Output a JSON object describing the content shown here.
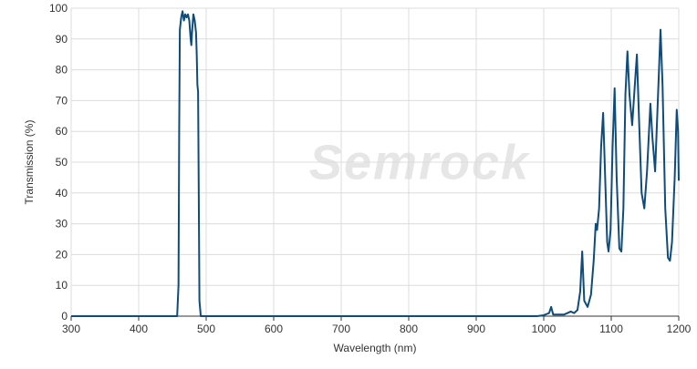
{
  "chart_data": {
    "type": "line",
    "watermark": "Semrock",
    "x_label": "Wavelength (nm)",
    "y_label": "Transmission (%)",
    "color": "#0f4c7a",
    "grid": true,
    "xlim": [
      300,
      1200
    ],
    "xticks": [
      300,
      400,
      500,
      600,
      700,
      800,
      900,
      1000,
      1100,
      1200
    ],
    "ylim": [
      0,
      100
    ],
    "yticks": [
      0,
      10,
      20,
      30,
      40,
      50,
      60,
      70,
      80,
      90,
      100
    ],
    "x": [
      300,
      457,
      459,
      460,
      461,
      463,
      465,
      467,
      469,
      471,
      473,
      475,
      477,
      478,
      479,
      481,
      483,
      485,
      486,
      487,
      488,
      489,
      490,
      492,
      500,
      990,
      1000,
      1008,
      1011,
      1014,
      1030,
      1040,
      1045,
      1050,
      1054,
      1057,
      1060,
      1065,
      1070,
      1074,
      1077,
      1079,
      1082,
      1085,
      1088,
      1091,
      1094,
      1096,
      1099,
      1102,
      1105,
      1108,
      1112,
      1115,
      1118,
      1121,
      1124,
      1127,
      1131,
      1134,
      1138,
      1141,
      1145,
      1149,
      1153,
      1158,
      1161,
      1165,
      1169,
      1173,
      1176,
      1180,
      1184,
      1187,
      1190,
      1194,
      1197,
      1199,
      1200
    ],
    "values": [
      0,
      0,
      10,
      60,
      93,
      97,
      99,
      96,
      98,
      97,
      98,
      96,
      90,
      88,
      92,
      98,
      96,
      92,
      85,
      75,
      73,
      40,
      5,
      0,
      0,
      0,
      0.3,
      1,
      3,
      0.5,
      0.5,
      1.5,
      1,
      2,
      8,
      21,
      5,
      3,
      7,
      18,
      30,
      28,
      35,
      55,
      66,
      45,
      24,
      21,
      28,
      55,
      74,
      45,
      22,
      21,
      35,
      72,
      86,
      72,
      62,
      72,
      85,
      65,
      40,
      35,
      47,
      69,
      58,
      47,
      70,
      93,
      75,
      35,
      19,
      18,
      24,
      45,
      67,
      60,
      44
    ]
  }
}
